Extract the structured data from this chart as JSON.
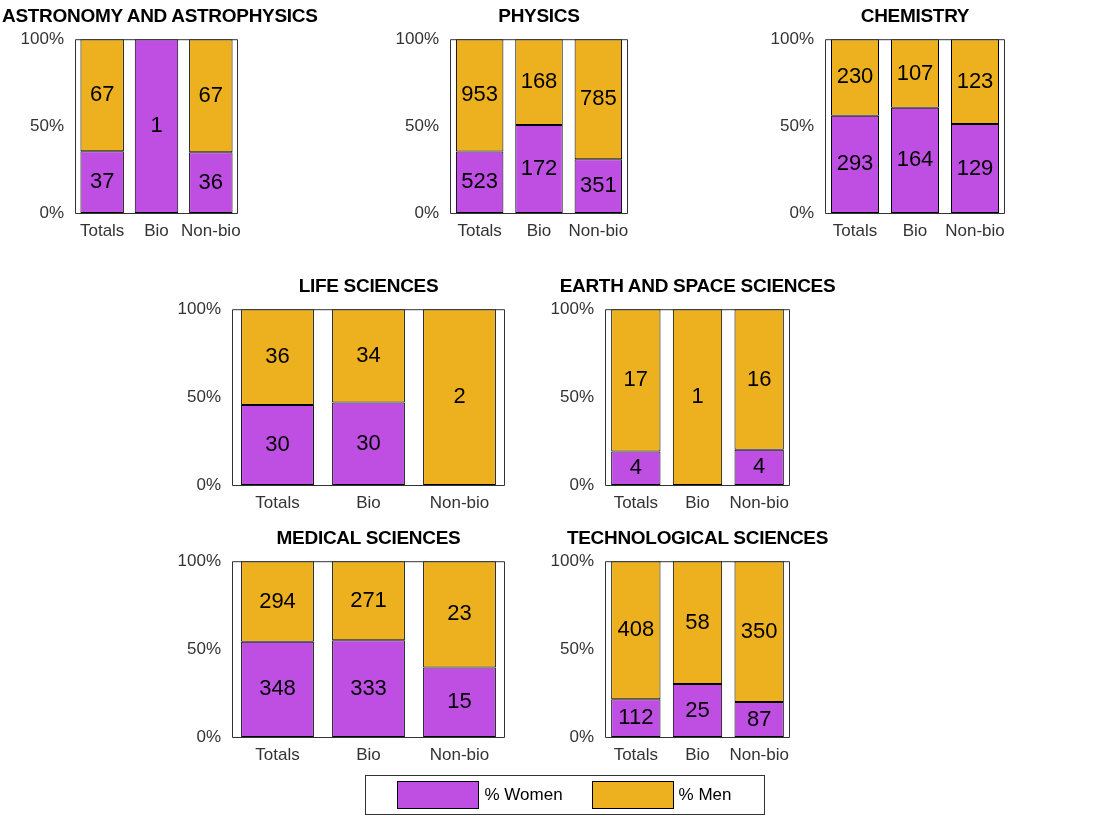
{
  "chart_data": [
    {
      "type": "bar",
      "title": "ASTRONOMY AND ASTROPHYSICS",
      "categories": [
        "Totals",
        "Bio",
        "Non-bio"
      ],
      "stacked": true,
      "ylim": [
        0,
        100
      ],
      "yticks": [
        {
          "value": 0,
          "label": "0%"
        },
        {
          "value": 50,
          "label": "50%"
        },
        {
          "value": 100,
          "label": "100%"
        }
      ],
      "grid": false,
      "legend": "bottom",
      "series": [
        {
          "name": "% Women",
          "color": "#bf4fe3",
          "values": [
            35.6,
            100,
            35.0
          ]
        },
        {
          "name": "% Men",
          "color": "#edb120",
          "values": [
            64.4,
            0,
            65.0
          ]
        }
      ],
      "annotations": [
        {
          "text": "37",
          "x": "Totals",
          "y": 35.6
        },
        "1",
        {
          "text": "36",
          "x": "Non-bio",
          "y": 35.0
        },
        {
          "text": "67",
          "x": "Totals",
          "y": 100
        },
        {
          "text": "67",
          "x": "Non-bio",
          "y": 100
        }
      ]
    },
    {
      "type": "bar",
      "title": "PHYSICS",
      "categories": [
        "Totals",
        "Bio",
        "Non-bio"
      ],
      "stacked": true,
      "ylim": [
        0,
        100
      ],
      "yticks": [
        {
          "value": 0,
          "label": "0%"
        },
        {
          "value": 50,
          "label": "50%"
        },
        {
          "value": 100,
          "label": "100%"
        }
      ],
      "grid": false,
      "legend": "bottom",
      "series": [
        {
          "name": "% Women",
          "color": "#bf4fe3",
          "values": [
            35.4,
            50.6,
            30.9
          ]
        },
        {
          "name": "% Men",
          "color": "#edb120",
          "values": [
            64.6,
            49.4,
            69.1
          ]
        }
      ],
      "annotations": [
        {
          "text": "523",
          "x": "Totals",
          "y": 35.4
        },
        {
          "text": "172",
          "x": "Bio",
          "y": 50.6
        },
        {
          "text": "351",
          "x": "Non-bio",
          "y": 30.9
        },
        {
          "text": "953",
          "x": "Totals",
          "y": 100
        },
        {
          "text": "168",
          "x": "Bio",
          "y": 100
        },
        {
          "text": "785",
          "x": "Non-bio",
          "y": 100
        }
      ]
    },
    {
      "type": "bar",
      "title": "CHEMISTRY",
      "categories": [
        "Totals",
        "Bio",
        "Non-bio"
      ],
      "stacked": true,
      "ylim": [
        0,
        100
      ],
      "yticks": [
        {
          "value": 0,
          "label": "0%"
        },
        {
          "value": 50,
          "label": "50%"
        },
        {
          "value": 100,
          "label": "100%"
        }
      ],
      "grid": false,
      "legend": "bottom",
      "series": [
        {
          "name": "% Women",
          "color": "#bf4fe3",
          "values": [
            56.0,
            60.5,
            51.2
          ]
        },
        {
          "name": "% Men",
          "color": "#edb120",
          "values": [
            44.0,
            39.5,
            48.8
          ]
        }
      ],
      "annotations": [
        {
          "text": "293",
          "x": "Totals",
          "y": 56.0
        },
        {
          "text": "164",
          "x": "Bio",
          "y": 60.5
        },
        {
          "text": "129",
          "x": "Non-bio",
          "y": 51.2
        },
        {
          "text": "230",
          "x": "Totals",
          "y": 100
        },
        {
          "text": "107",
          "x": "Bio",
          "y": 100
        },
        {
          "text": "123",
          "x": "Non-bio",
          "y": 100
        }
      ]
    },
    {
      "type": "bar",
      "title": "LIFE SCIENCES",
      "categories": [
        "Totals",
        "Bio",
        "Non-bio"
      ],
      "stacked": true,
      "ylim": [
        0,
        100
      ],
      "yticks": [
        {
          "value": 0,
          "label": "0%"
        },
        {
          "value": 50,
          "label": "50%"
        },
        {
          "value": 100,
          "label": "100%"
        }
      ],
      "grid": false,
      "legend": "bottom",
      "series": [
        {
          "name": "% Women",
          "color": "#bf4fe3",
          "values": [
            45.5,
            46.9,
            0
          ]
        },
        {
          "name": "% Men",
          "color": "#edb120",
          "values": [
            54.5,
            53.1,
            100
          ]
        }
      ],
      "annotations": [
        {
          "text": "30",
          "x": "Totals",
          "y": 45.5
        },
        {
          "text": "30",
          "x": "Bio",
          "y": 46.9
        },
        {
          "text": "36",
          "x": "Totals",
          "y": 100
        },
        {
          "text": "34",
          "x": "Bio",
          "y": 100
        },
        "2"
      ]
    },
    {
      "type": "bar",
      "title": "EARTH AND SPACE SCIENCES",
      "categories": [
        "Totals",
        "Bio",
        "Non-bio"
      ],
      "stacked": true,
      "ylim": [
        0,
        100
      ],
      "yticks": [
        {
          "value": 0,
          "label": "0%"
        },
        {
          "value": 50,
          "label": "50%"
        },
        {
          "value": 100,
          "label": "100%"
        }
      ],
      "grid": false,
      "legend": "bottom",
      "series": [
        {
          "name": "% Women",
          "color": "#bf4fe3",
          "values": [
            19.0,
            0,
            20.0
          ]
        },
        {
          "name": "% Men",
          "color": "#edb120",
          "values": [
            81.0,
            100,
            80.0
          ]
        }
      ],
      "annotations": [
        {
          "text": "4",
          "x": "Totals",
          "y": 19.0
        },
        {
          "text": "4",
          "x": "Non-bio",
          "y": 20.0
        },
        {
          "text": "17",
          "x": "Totals",
          "y": 100
        },
        "1",
        {
          "text": "16",
          "x": "Non-bio",
          "y": 100
        }
      ]
    },
    {
      "type": "bar",
      "title": "MEDICAL SCIENCES",
      "categories": [
        "Totals",
        "Bio",
        "Non-bio"
      ],
      "stacked": true,
      "ylim": [
        0,
        100
      ],
      "yticks": [
        {
          "value": 0,
          "label": "0%"
        },
        {
          "value": 50,
          "label": "50%"
        },
        {
          "value": 100,
          "label": "100%"
        }
      ],
      "grid": false,
      "legend": "bottom",
      "series": [
        {
          "name": "% Women",
          "color": "#bf4fe3",
          "values": [
            54.2,
            55.1,
            39.5
          ]
        },
        {
          "name": "% Men",
          "color": "#edb120",
          "values": [
            45.8,
            44.9,
            60.5
          ]
        }
      ],
      "annotations": [
        {
          "text": "348",
          "x": "Totals",
          "y": 54.2
        },
        {
          "text": "333",
          "x": "Bio",
          "y": 55.1
        },
        {
          "text": "15",
          "x": "Non-bio",
          "y": 39.5
        },
        {
          "text": "294",
          "x": "Totals",
          "y": 100
        },
        {
          "text": "271",
          "x": "Bio",
          "y": 100
        },
        {
          "text": "23",
          "x": "Non-bio",
          "y": 100
        }
      ]
    },
    {
      "type": "bar",
      "title": "TECHNOLOGICAL SCIENCES",
      "categories": [
        "Totals",
        "Bio",
        "Non-bio"
      ],
      "stacked": true,
      "ylim": [
        0,
        100
      ],
      "yticks": [
        {
          "value": 0,
          "label": "0%"
        },
        {
          "value": 50,
          "label": "50%"
        },
        {
          "value": 100,
          "label": "100%"
        }
      ],
      "grid": false,
      "legend": "bottom",
      "series": [
        {
          "name": "% Women",
          "color": "#bf4fe3",
          "values": [
            21.5,
            30.1,
            19.9
          ]
        },
        {
          "name": "% Men",
          "color": "#edb120",
          "values": [
            78.5,
            69.9,
            80.1
          ]
        }
      ],
      "annotations": [
        {
          "text": "112",
          "x": "Totals",
          "y": 21.5
        },
        {
          "text": "25",
          "x": "Bio",
          "y": 30.1
        },
        {
          "text": "87",
          "x": "Non-bio",
          "y": 19.9
        },
        {
          "text": "408",
          "x": "Totals",
          "y": 100
        },
        {
          "text": "58",
          "x": "Bio",
          "y": 100
        },
        {
          "text": "350",
          "x": "Non-bio",
          "y": 100
        }
      ]
    }
  ]
}
